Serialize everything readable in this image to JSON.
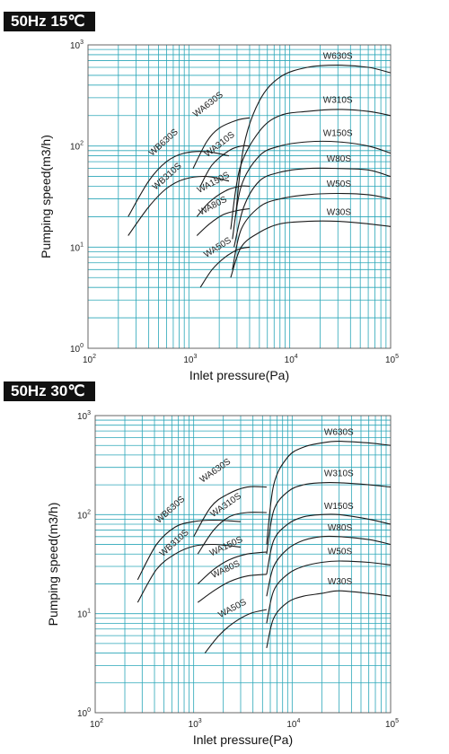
{
  "chart_data": [
    {
      "type": "line",
      "title": "50Hz  15℃",
      "xlabel": "Inlet pressure(Pa)",
      "ylabel": "Pumping speed(m3/h)",
      "xscale": "log",
      "yscale": "log",
      "xlim": [
        100,
        100000
      ],
      "ylim": [
        1,
        1000
      ],
      "xticks": [
        "10^2",
        "10^3",
        "10^4",
        "10^5"
      ],
      "yticks": [
        "10^0",
        "10^1",
        "10^2",
        "10^3"
      ],
      "grid": true,
      "series": [
        {
          "name": "W630S",
          "x": [
            2900,
            3500,
            5000,
            8000,
            15000,
            30000,
            60000,
            100000
          ],
          "y": [
            20,
            100,
            280,
            480,
            600,
            630,
            600,
            530
          ]
        },
        {
          "name": "W310S",
          "x": [
            2600,
            3200,
            5000,
            8000,
            15000,
            30000,
            60000,
            100000
          ],
          "y": [
            15,
            60,
            140,
            200,
            220,
            230,
            220,
            200
          ]
        },
        {
          "name": "W150S",
          "x": [
            2700,
            3300,
            5000,
            8000,
            15000,
            30000,
            60000,
            100000
          ],
          "y": [
            12,
            40,
            80,
            100,
            110,
            110,
            100,
            85
          ]
        },
        {
          "name": "W80S",
          "x": [
            2800,
            3500,
            5000,
            8000,
            15000,
            30000,
            60000,
            100000
          ],
          "y": [
            10,
            25,
            45,
            55,
            60,
            60,
            58,
            50
          ]
        },
        {
          "name": "W50S",
          "x": [
            2700,
            3300,
            5000,
            8000,
            15000,
            30000,
            60000,
            100000
          ],
          "y": [
            6,
            15,
            25,
            30,
            33,
            34,
            33,
            30
          ]
        },
        {
          "name": "W30S",
          "x": [
            2600,
            3300,
            5000,
            8000,
            15000,
            30000,
            60000,
            100000
          ],
          "y": [
            5,
            10,
            14,
            17,
            18,
            18,
            17,
            16
          ]
        },
        {
          "name": "WA630S",
          "x": [
            1100,
            1500,
            2000,
            3000,
            4000
          ],
          "y": [
            60,
            110,
            150,
            180,
            190
          ]
        },
        {
          "name": "WA310S",
          "x": [
            1300,
            1700,
            2500,
            3300,
            4000
          ],
          "y": [
            40,
            65,
            90,
            100,
            100
          ]
        },
        {
          "name": "WA150S",
          "x": [
            1200,
            1600,
            2300,
            3200,
            4000
          ],
          "y": [
            20,
            28,
            36,
            40,
            40
          ]
        },
        {
          "name": "WA80S",
          "x": [
            1200,
            1600,
            2200,
            3000,
            4000
          ],
          "y": [
            13,
            17,
            21,
            23,
            24
          ]
        },
        {
          "name": "WA50S",
          "x": [
            1300,
            1700,
            2300,
            3100,
            4000
          ],
          "y": [
            4,
            6,
            8,
            9.5,
            10
          ]
        },
        {
          "name": "WB630S",
          "x": [
            250,
            400,
            600,
            900,
            1500,
            2500
          ],
          "y": [
            20,
            45,
            70,
            85,
            88,
            80
          ]
        },
        {
          "name": "WB310S",
          "x": [
            250,
            400,
            600,
            900,
            1500,
            2500
          ],
          "y": [
            13,
            25,
            38,
            47,
            50,
            45
          ]
        }
      ]
    },
    {
      "type": "line",
      "title": "50Hz  30℃",
      "xlabel": "Inlet pressure(Pa)",
      "ylabel": "Pumping speed(m3/h)",
      "xscale": "log",
      "yscale": "log",
      "xlim": [
        100,
        100000
      ],
      "ylim": [
        1,
        1000
      ],
      "xticks": [
        "10^2",
        "10^3",
        "10^4",
        "10^5"
      ],
      "yticks": [
        "10^0",
        "10^1",
        "10^2",
        "10^3"
      ],
      "grid": true,
      "series": [
        {
          "name": "W630S",
          "x": [
            5500,
            6500,
            9000,
            13000,
            20000,
            30000,
            60000,
            100000
          ],
          "y": [
            50,
            200,
            380,
            480,
            530,
            550,
            530,
            500
          ]
        },
        {
          "name": "W310S",
          "x": [
            5500,
            6500,
            9000,
            13000,
            20000,
            30000,
            60000,
            100000
          ],
          "y": [
            40,
            110,
            170,
            200,
            210,
            210,
            200,
            190
          ]
        },
        {
          "name": "W150S",
          "x": [
            5500,
            6500,
            9000,
            13000,
            20000,
            30000,
            60000,
            100000
          ],
          "y": [
            25,
            55,
            80,
            95,
            100,
            100,
            90,
            80
          ]
        },
        {
          "name": "W80S",
          "x": [
            5500,
            6500,
            9000,
            13000,
            20000,
            30000,
            60000,
            100000
          ],
          "y": [
            15,
            30,
            45,
            55,
            60,
            60,
            56,
            50
          ]
        },
        {
          "name": "W50S",
          "x": [
            5500,
            6500,
            9000,
            13000,
            20000,
            30000,
            60000,
            100000
          ],
          "y": [
            8,
            17,
            25,
            30,
            33,
            34,
            33,
            31
          ]
        },
        {
          "name": "W30S",
          "x": [
            5500,
            6500,
            9000,
            13000,
            20000,
            30000,
            60000,
            100000
          ],
          "y": [
            4.5,
            9,
            13,
            15,
            16,
            17,
            16,
            15
          ]
        },
        {
          "name": "WA630S",
          "x": [
            1000,
            1500,
            2200,
            3500,
            5500
          ],
          "y": [
            60,
            120,
            160,
            190,
            190
          ]
        },
        {
          "name": "WA310S",
          "x": [
            1100,
            1600,
            2300,
            3500,
            5500
          ],
          "y": [
            40,
            70,
            95,
            105,
            105
          ]
        },
        {
          "name": "WA150S",
          "x": [
            1100,
            1600,
            2300,
            3500,
            5500
          ],
          "y": [
            20,
            28,
            35,
            40,
            42
          ]
        },
        {
          "name": "WA80S",
          "x": [
            1100,
            1600,
            2300,
            3500,
            5500
          ],
          "y": [
            13,
            17,
            21,
            24,
            25
          ]
        },
        {
          "name": "WA50S",
          "x": [
            1300,
            1800,
            2500,
            3700,
            5500
          ],
          "y": [
            4,
            6,
            8,
            10,
            11
          ]
        },
        {
          "name": "WB630S",
          "x": [
            270,
            420,
            650,
            1000,
            1600,
            3000
          ],
          "y": [
            22,
            50,
            75,
            85,
            88,
            85
          ]
        },
        {
          "name": "WB310S",
          "x": [
            270,
            420,
            650,
            1000,
            1600,
            3000
          ],
          "y": [
            13,
            28,
            40,
            48,
            50,
            47
          ]
        }
      ]
    }
  ]
}
